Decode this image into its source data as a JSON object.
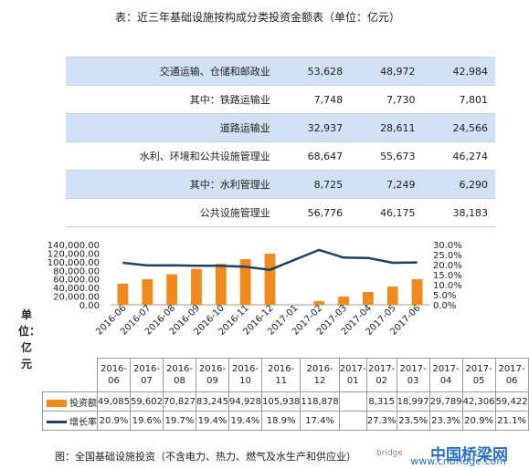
{
  "title": "表：近三年基础设施按构成分类投资金额表（单位：亿元）",
  "table": {
    "rows": [
      {
        "label": "交通运输、仓储和邮政业",
        "v1": "53,628",
        "v2": "48,972",
        "v3": "42,984",
        "hl": true
      },
      {
        "label": "其中：铁路运输业",
        "v1": "7,748",
        "v2": "7,730",
        "v3": "7,801",
        "hl": false
      },
      {
        "label": "道路运输业",
        "v1": "32,937",
        "v2": "28,611",
        "v3": "24,566",
        "hl": true
      },
      {
        "label": "水利、环境和公共设施管理业",
        "v1": "68,647",
        "v2": "55,673",
        "v3": "46,274",
        "hl": false
      },
      {
        "label": "其中：水利管理业",
        "v1": "8,725",
        "v2": "7,249",
        "v3": "6,290",
        "hl": true
      },
      {
        "label": "公共设施管理业",
        "v1": "56,776",
        "v2": "46,175",
        "v3": "38,183",
        "hl": false
      }
    ]
  },
  "unit_label": "单位：亿元",
  "chart_data": {
    "type": "bar",
    "categories": [
      "2016-06",
      "2016-07",
      "2016-08",
      "2016-09",
      "2016-10",
      "2016-11",
      "2016-12",
      "2017-01",
      "2017-02",
      "2017-03",
      "2017-04",
      "2017-05",
      "2017-06"
    ],
    "series": [
      {
        "name": "投资额",
        "type": "bar",
        "color": "#f08a1c",
        "values": [
          49085,
          59602,
          70827,
          83245,
          94928,
          105938,
          118878,
          null,
          8315,
          18997,
          29789,
          42306,
          59422
        ],
        "labels": [
          "49,085",
          "59,602",
          "70,827",
          "83,245",
          "94,928",
          "105,938",
          "118,878",
          "",
          "8,315",
          "18,997",
          "29,789",
          "42,306",
          "59,422"
        ]
      },
      {
        "name": "增长率",
        "type": "line",
        "color": "#1f3f63",
        "values": [
          20.9,
          19.6,
          19.7,
          19.4,
          19.4,
          18.9,
          17.4,
          null,
          27.3,
          23.5,
          23.3,
          20.9,
          21.1
        ],
        "labels": [
          "20.9%",
          "19.6%",
          "19.7%",
          "19.4%",
          "19.4%",
          "18.9%",
          "17.4%",
          "",
          "27.3%",
          "23.5%",
          "23.3%",
          "20.9%",
          "21.1%"
        ]
      }
    ],
    "y_left": {
      "ticks": [
        "140,000.00",
        "120,000.00",
        "100,000.00",
        "80,000.00",
        "60,000.00",
        "40,000.00",
        "20,000.00",
        "0.00"
      ],
      "ylim": [
        0,
        140000
      ]
    },
    "y_right": {
      "ticks": [
        "30.0%",
        "25.0%",
        "20.0%",
        "15.0%",
        "10.0%",
        "5.0%",
        "0.0%"
      ],
      "ylim": [
        0,
        30
      ]
    }
  },
  "caption": "图：全国基础设施投资（不含电力、热力、燃气及水生产和供应业）",
  "watermark": {
    "text": "中国桥梁网",
    "url": "www.cnbridge.com",
    "small": "bridge"
  }
}
